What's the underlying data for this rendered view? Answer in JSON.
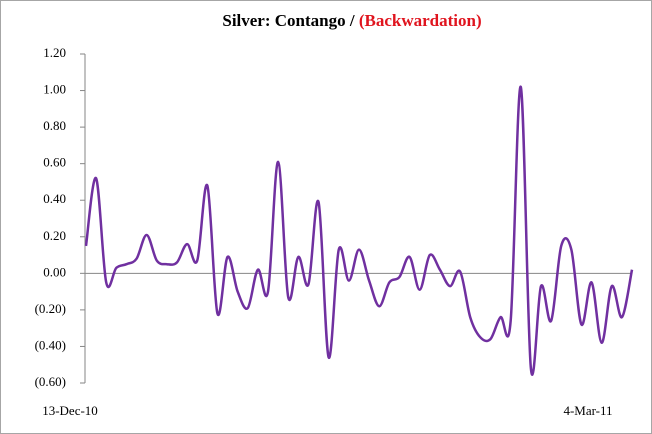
{
  "chart_data": {
    "type": "line",
    "title": "Silver: Contango /",
    "title_highlight": "(Backwardation)",
    "title_highlight_color": "#e0141e",
    "negative_label_color": "#e0141e",
    "categories": [
      "13-Dec-10",
      null,
      null,
      null,
      null,
      null,
      null,
      null,
      null,
      null,
      null,
      null,
      null,
      null,
      null,
      null,
      null,
      null,
      null,
      null,
      null,
      null,
      null,
      null,
      null,
      null,
      null,
      null,
      null,
      null,
      null,
      null,
      null,
      null,
      null,
      null,
      null,
      null,
      null,
      null,
      null,
      null,
      null,
      null,
      null,
      null,
      null,
      null,
      null,
      null,
      null,
      null,
      null,
      null,
      "4-Mar-11"
    ],
    "series": [
      {
        "name": "Contango / (Backwardation)",
        "color": "#7030a0",
        "values": [
          0.15,
          0.52,
          -0.05,
          0.03,
          0.05,
          0.08,
          0.21,
          0.07,
          0.05,
          0.06,
          0.16,
          0.07,
          0.48,
          -0.22,
          0.09,
          -0.1,
          -0.19,
          0.02,
          -0.1,
          0.61,
          -0.13,
          0.09,
          -0.06,
          0.39,
          -0.46,
          0.13,
          -0.04,
          0.13,
          -0.04,
          -0.18,
          -0.05,
          -0.02,
          0.09,
          -0.09,
          0.1,
          0.02,
          -0.07,
          0.01,
          -0.24,
          -0.35,
          -0.36,
          -0.24,
          -0.26,
          1.02,
          -0.52,
          -0.07,
          -0.26,
          0.15,
          0.13,
          -0.28,
          -0.05,
          -0.38,
          -0.07,
          -0.24,
          0.02
        ]
      }
    ],
    "ylim": [
      -0.6,
      1.2
    ],
    "yticks": [
      {
        "value": -0.6,
        "label": "(0.60)"
      },
      {
        "value": -0.4,
        "label": "(0.40)"
      },
      {
        "value": -0.2,
        "label": "(0.20)"
      },
      {
        "value": 0,
        "label": "0.00"
      },
      {
        "value": 0.2,
        "label": "0.20"
      },
      {
        "value": 0.4,
        "label": "0.40"
      },
      {
        "value": 0.6,
        "label": "0.60"
      },
      {
        "value": 0.8,
        "label": "0.80"
      },
      {
        "value": 1.0,
        "label": "1.00"
      },
      {
        "value": 1.2,
        "label": "1.20"
      }
    ]
  }
}
